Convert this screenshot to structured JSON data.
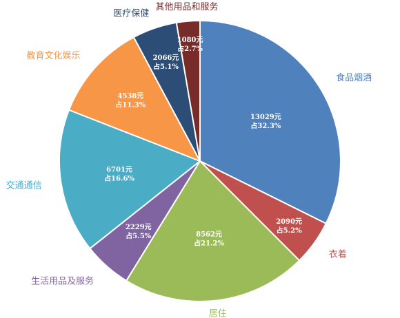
{
  "chart_data": {
    "type": "pie",
    "title": "",
    "slices": [
      {
        "category": "食品烟酒",
        "value": 13029,
        "value_label": "13029元",
        "percent_label": "占32.3%",
        "color": "#4F81BD"
      },
      {
        "category": "衣着",
        "value": 2090,
        "value_label": "2090元",
        "percent_label": "占5.2%",
        "color": "#C0504D"
      },
      {
        "category": "居住",
        "value": 8562,
        "value_label": "8562元",
        "percent_label": "占21.2%",
        "color": "#9BBB59"
      },
      {
        "category": "生活用品及服务",
        "value": 2229,
        "value_label": "2229元",
        "percent_label": "占5.5%",
        "color": "#8064A2"
      },
      {
        "category": "交通通信",
        "value": 6701,
        "value_label": "6701元",
        "percent_label": "占16.6%",
        "color": "#4BACC6"
      },
      {
        "category": "教育文化娱乐",
        "value": 4538,
        "value_label": "4538元",
        "percent_label": "占11.3%",
        "color": "#F79646"
      },
      {
        "category": "医疗保健",
        "value": 2066,
        "value_label": "2066元",
        "percent_label": "占5.1%",
        "color": "#2C4D75"
      },
      {
        "category": "其他用品和服务",
        "value": 1080,
        "value_label": "1080元",
        "percent_label": "占2.7%",
        "color": "#772C2A"
      }
    ]
  }
}
